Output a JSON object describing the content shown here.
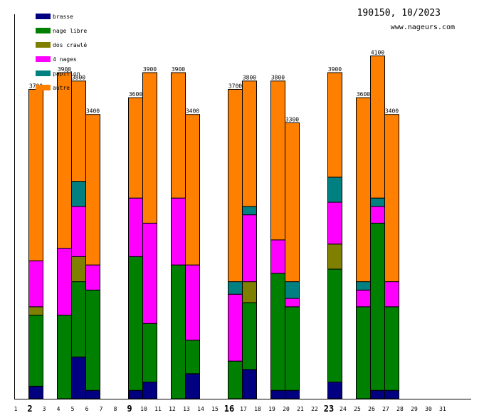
{
  "header": {
    "title": "190150, 10/2023",
    "site": "www.nageurs.com"
  },
  "chart_data": {
    "type": "bar",
    "stacked": true,
    "title": "190150, 10/2023",
    "xlabel": "",
    "ylabel": "",
    "ylim": [
      0,
      4000
    ],
    "grid": false,
    "legend_position": "top-left",
    "categories": [
      "1",
      "2",
      "3",
      "4",
      "5",
      "6",
      "7",
      "8",
      "9",
      "10",
      "11",
      "12",
      "13",
      "14",
      "15",
      "16",
      "17",
      "18",
      "19",
      "20",
      "21",
      "22",
      "23",
      "24",
      "25",
      "26",
      "27",
      "28",
      "29",
      "30",
      "31"
    ],
    "bold_categories": [
      "2",
      "9",
      "16",
      "23"
    ],
    "series": [
      {
        "name": "brasse",
        "color": "#000080",
        "values": [
          0,
          150,
          0,
          0,
          500,
          100,
          0,
          0,
          100,
          200,
          0,
          0,
          300,
          0,
          0,
          0,
          350,
          0,
          100,
          100,
          0,
          0,
          200,
          0,
          0,
          100,
          100,
          0,
          0,
          0,
          0
        ]
      },
      {
        "name": "nage libre",
        "color": "#008000",
        "values": [
          0,
          850,
          0,
          1000,
          900,
          1200,
          0,
          0,
          1600,
          700,
          0,
          1600,
          400,
          0,
          0,
          450,
          800,
          0,
          1400,
          1000,
          0,
          0,
          1350,
          0,
          1100,
          2000,
          1000,
          0,
          0,
          0,
          0
        ]
      },
      {
        "name": "dos crawlé",
        "color": "#808000",
        "values": [
          0,
          100,
          0,
          0,
          300,
          0,
          0,
          0,
          0,
          0,
          0,
          0,
          0,
          0,
          0,
          0,
          250,
          0,
          0,
          0,
          0,
          0,
          300,
          0,
          0,
          0,
          0,
          0,
          0,
          0,
          0
        ]
      },
      {
        "name": "4 nages",
        "color": "#ff00ff",
        "values": [
          0,
          550,
          0,
          800,
          600,
          300,
          0,
          0,
          700,
          1200,
          0,
          800,
          900,
          0,
          0,
          800,
          800,
          0,
          400,
          100,
          0,
          0,
          500,
          0,
          200,
          200,
          300,
          0,
          0,
          0,
          0
        ]
      },
      {
        "name": "papillon",
        "color": "#008080",
        "values": [
          0,
          0,
          0,
          0,
          300,
          0,
          0,
          0,
          0,
          0,
          0,
          0,
          0,
          0,
          0,
          150,
          100,
          0,
          0,
          200,
          0,
          0,
          300,
          0,
          100,
          100,
          0,
          0,
          0,
          0,
          0
        ]
      },
      {
        "name": "autre",
        "color": "#ff8000",
        "values": [
          0,
          2050,
          0,
          2100,
          1200,
          1800,
          0,
          0,
          1200,
          1800,
          0,
          1500,
          1800,
          0,
          0,
          2300,
          1500,
          0,
          1900,
          1900,
          0,
          0,
          1250,
          0,
          2200,
          1700,
          2000,
          0,
          0,
          0,
          0
        ]
      }
    ],
    "totals": [
      0,
      3700,
      0,
      3900,
      3800,
      3400,
      0,
      0,
      3600,
      3900,
      0,
      3900,
      3400,
      0,
      0,
      3700,
      3800,
      0,
      3800,
      3300,
      0,
      0,
      3900,
      0,
      3600,
      4100,
      3400,
      0,
      0,
      0,
      0
    ]
  }
}
